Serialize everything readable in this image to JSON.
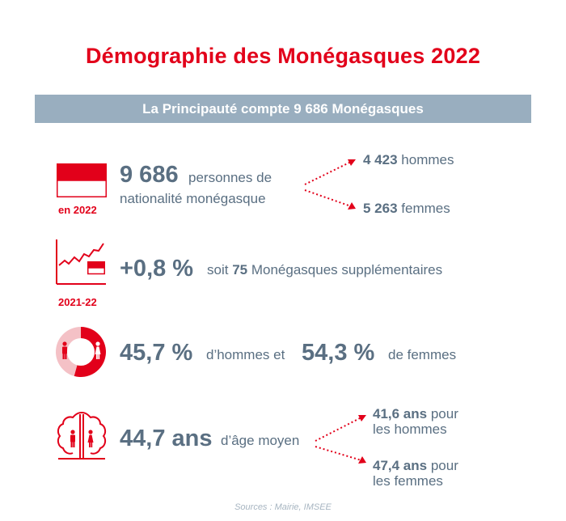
{
  "title": "Démographie des Monégasques 2022",
  "banner": "La Principauté compte 9 686 Monégasques",
  "colors": {
    "red": "#e2001a",
    "slate": "#5a6f82",
    "banner_bg": "#99aebf",
    "pink": "#f4c1c6"
  },
  "row1": {
    "icon": "monaco-flag-icon",
    "year_label": "en 2022",
    "big_number": "9 686",
    "text_line1": "personnes de",
    "text_line2": "nationalité monégasque",
    "branch_top": {
      "value": "4 423",
      "label": "hommes"
    },
    "branch_bottom": {
      "value": "5 263",
      "label": "femmes"
    }
  },
  "row2": {
    "icon": "growth-chart-flag-icon",
    "period_label": "2021-22",
    "big_value": "+0,8 %",
    "text_pre": "soit",
    "number": "75",
    "text_post": "Monégasques supplémentaires"
  },
  "row3": {
    "icon": "gender-donut-icon",
    "men_share": 0.457,
    "value_men": "45,7 %",
    "text_men": "d’hommes et",
    "value_women": "54,3 %",
    "text_women": "de femmes"
  },
  "row4": {
    "icon": "tree-family-icon",
    "big_value": "44,7 ans",
    "text": "d’âge moyen",
    "branch_top": {
      "value": "41,6 ans",
      "label_a": "pour",
      "label_b": "les hommes"
    },
    "branch_bottom": {
      "value": "47,4 ans",
      "label_a": "pour",
      "label_b": "les femmes"
    }
  },
  "sources": "Sources : Mairie, IMSEE"
}
